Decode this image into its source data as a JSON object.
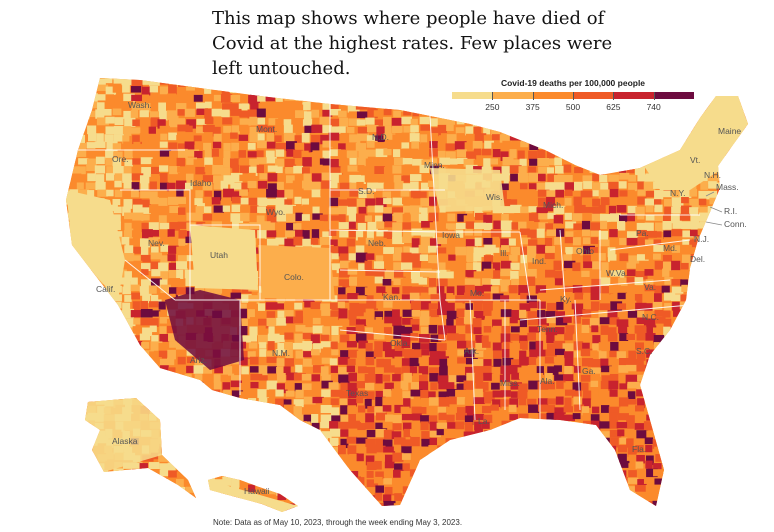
{
  "title": "This map shows where people have died of Covid at the highest rates. Few places were left untouched.",
  "legend": {
    "title": "Covid-19 deaths per 100,000 people",
    "colors": [
      "#f6dc8c",
      "#fcae4c",
      "#fb8a2c",
      "#ef5a26",
      "#c8232e",
      "#6d0b3f"
    ],
    "ticks": [
      "250",
      "375",
      "500",
      "625",
      "740"
    ]
  },
  "states": {
    "wash": "Wash.",
    "ore": "Ore.",
    "calif": "Calif.",
    "nev": "Nev.",
    "idaho": "Idaho",
    "mont": "Mont.",
    "wyo": "Wyo.",
    "utah": "Utah",
    "colo": "Colo.",
    "ariz": "Ariz.",
    "nm": "N.M.",
    "nd": "N.D.",
    "sd": "S.D.",
    "neb": "Neb.",
    "kan": "Kan.",
    "okla": "Okla.",
    "tex": "Texas",
    "minn": "Minn.",
    "iowa": "Iowa",
    "mo": "Mo.",
    "ark": "Ark.",
    "la": "La.",
    "wis": "Wis.",
    "ill": "Ill.",
    "mich": "Mich.",
    "ind": "Ind.",
    "ohio": "Ohio",
    "ky": "Ky.",
    "tenn": "Tenn.",
    "miss": "Miss.",
    "ala": "Ala.",
    "ga": "Ga.",
    "fla": "Fla.",
    "sc": "S.C.",
    "nc": "N.C.",
    "va": "Va.",
    "wva": "W.Va.",
    "pa": "Pa.",
    "ny": "N.Y.",
    "vt": "Vt.",
    "nh": "N.H.",
    "maine": "Maine",
    "mass": "Mass.",
    "ri": "R.I.",
    "conn": "Conn.",
    "nj": "N.J.",
    "del": "Del.",
    "md": "Md.",
    "alaska": "Alaska",
    "hawaii": "Hawaii"
  },
  "note": "Note: Data as of May 10, 2023, through the week ending May 3, 2023."
}
